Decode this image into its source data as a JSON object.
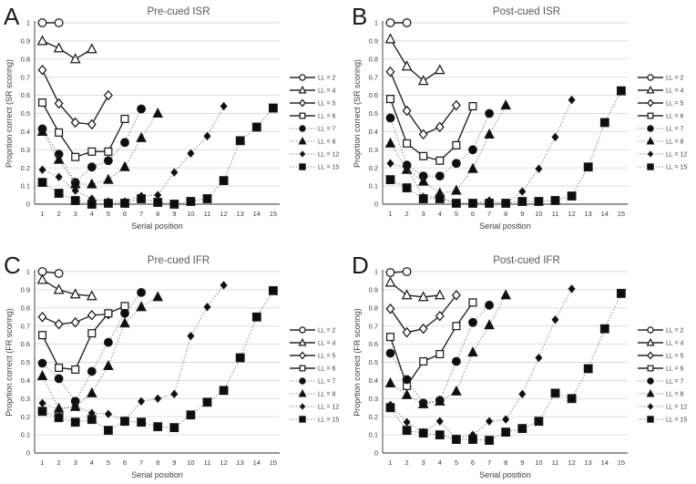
{
  "figure": {
    "description": "Four-panel serial position curves figure",
    "panel_letters": [
      "A",
      "B",
      "C",
      "D"
    ]
  },
  "style": {
    "background": "#ffffff",
    "grid_color": "#d9d9d9",
    "axis_line_color": "#595959",
    "tick_text_color": "#404040",
    "axis_title_color": "#404040",
    "title_color": "#595959",
    "panel_label_color": "#1a1a1a",
    "solid_line_color": "#262626",
    "dotted_line_color": "#7f7f7f",
    "marker_stroke": "#1a1a1a",
    "marker_fill": "#0d0d0d",
    "open_marker_fill": "#ffffff"
  },
  "axes": {
    "xlabel": "Serial position",
    "x_tick_labels": [
      "1",
      "2",
      "3",
      "4",
      "5",
      "6",
      "7",
      "8",
      "9",
      "10",
      "11",
      "12",
      "13",
      "14",
      "15"
    ],
    "y_tick_labels": [
      "0",
      "0.1",
      "0.2",
      "0.3",
      "0.4",
      "0.5",
      "0.6",
      "0.7",
      "0.8",
      "0.9",
      "1"
    ],
    "ylim": [
      0,
      1
    ],
    "xlim": [
      1,
      15
    ],
    "grid": "horizontal",
    "legend_position": "right"
  },
  "series_styles": [
    {
      "name": "LL = 2",
      "marker": "circle",
      "variant": "open",
      "line": "solid"
    },
    {
      "name": "LL = 4",
      "marker": "triangle",
      "variant": "open",
      "line": "solid"
    },
    {
      "name": "LL = 5",
      "marker": "diamond",
      "variant": "open",
      "line": "solid"
    },
    {
      "name": "LL = 6",
      "marker": "square",
      "variant": "open",
      "line": "solid"
    },
    {
      "name": "LL = 7",
      "marker": "circle",
      "variant": "filled",
      "line": "dotted"
    },
    {
      "name": "LL = 8",
      "marker": "triangle",
      "variant": "filled",
      "line": "dotted"
    },
    {
      "name": "LL = 12",
      "marker": "diamond",
      "variant": "filled",
      "line": "dotted"
    },
    {
      "name": "LL = 15",
      "marker": "square",
      "variant": "filled",
      "line": "dotted"
    }
  ],
  "chart_data": [
    {
      "type": "line",
      "panel_label": "A",
      "title": "Pre-cued ISR",
      "xlabel": "Serial position",
      "ylabel": "Proprtion correct (SR scoring)",
      "series": [
        {
          "name": "LL = 2",
          "y": [
            1,
            1
          ]
        },
        {
          "name": "LL = 4",
          "y": [
            0.9,
            0.86,
            0.8,
            0.855
          ]
        },
        {
          "name": "LL = 5",
          "y": [
            0.74,
            0.555,
            0.45,
            0.44,
            0.6
          ]
        },
        {
          "name": "LL = 6",
          "y": [
            0.56,
            0.395,
            0.26,
            0.29,
            0.29,
            0.47
          ]
        },
        {
          "name": "LL = 7",
          "y": [
            0.415,
            0.275,
            0.12,
            0.205,
            0.24,
            0.34,
            0.525
          ]
        },
        {
          "name": "LL = 8",
          "y": [
            0.4,
            0.245,
            0.11,
            0.11,
            0.135,
            0.205,
            0.365,
            0.5
          ]
        },
        {
          "name": "LL = 12",
          "y": [
            0.19,
            0.15,
            0.075,
            0.03,
            0.015,
            0.015,
            0.045,
            0.05,
            0.175,
            0.28,
            0.375,
            0.54
          ]
        },
        {
          "name": "LL = 15",
          "y": [
            0.12,
            0.06,
            0.02,
            0,
            0.005,
            0.005,
            0.03,
            0.01,
            0,
            0.015,
            0.03,
            0.13,
            0.35,
            0.425,
            0.53
          ]
        }
      ]
    },
    {
      "type": "line",
      "panel_label": "B",
      "title": "Post-cued ISR",
      "xlabel": "Serial position",
      "ylabel": "Proprtion correct (SR scoring)",
      "series": [
        {
          "name": "LL = 2",
          "y": [
            1,
            1
          ]
        },
        {
          "name": "LL = 4",
          "y": [
            0.91,
            0.76,
            0.68,
            0.74
          ]
        },
        {
          "name": "LL = 5",
          "y": [
            0.73,
            0.515,
            0.385,
            0.425,
            0.545
          ]
        },
        {
          "name": "LL = 6",
          "y": [
            0.58,
            0.335,
            0.265,
            0.24,
            0.325,
            0.54
          ]
        },
        {
          "name": "LL = 7",
          "y": [
            0.475,
            0.215,
            0.155,
            0.155,
            0.225,
            0.3,
            0.5
          ]
        },
        {
          "name": "LL = 8",
          "y": [
            0.335,
            0.19,
            0.125,
            0.06,
            0.075,
            0.195,
            0.385,
            0.545
          ]
        },
        {
          "name": "LL = 12",
          "y": [
            0.225,
            0.2,
            0.04,
            0.04,
            0.005,
            0.005,
            0.02,
            0.005,
            0.07,
            0.195,
            0.37,
            0.575
          ]
        },
        {
          "name": "LL = 15",
          "y": [
            0.135,
            0.09,
            0.03,
            0.03,
            0.005,
            0.005,
            0.005,
            0.005,
            0.015,
            0.015,
            0.02,
            0.045,
            0.205,
            0.45,
            0.625
          ]
        }
      ]
    },
    {
      "type": "line",
      "panel_label": "C",
      "title": "Pre-cued IFR",
      "xlabel": "Serial position",
      "ylabel": "Proprtion correct (FR scoring)",
      "series": [
        {
          "name": "LL = 2",
          "y": [
            1,
            0.99
          ]
        },
        {
          "name": "LL = 4",
          "y": [
            0.955,
            0.9,
            0.875,
            0.865
          ]
        },
        {
          "name": "LL = 5",
          "y": [
            0.75,
            0.71,
            0.72,
            0.76,
            0.765
          ]
        },
        {
          "name": "LL = 6",
          "y": [
            0.65,
            0.47,
            0.46,
            0.66,
            0.77,
            0.81
          ]
        },
        {
          "name": "LL = 7",
          "y": [
            0.495,
            0.41,
            0.285,
            0.45,
            0.61,
            0.77,
            0.885
          ]
        },
        {
          "name": "LL = 8",
          "y": [
            0.425,
            0.245,
            0.255,
            0.33,
            0.48,
            0.715,
            0.805,
            0.86
          ]
        },
        {
          "name": "LL = 12",
          "y": [
            0.275,
            0.24,
            0.26,
            0.22,
            0.215,
            0.18,
            0.285,
            0.3,
            0.325,
            0.645,
            0.805,
            0.925
          ]
        },
        {
          "name": "LL = 15",
          "y": [
            0.23,
            0.195,
            0.17,
            0.185,
            0.125,
            0.175,
            0.17,
            0.145,
            0.14,
            0.21,
            0.28,
            0.345,
            0.525,
            0.75,
            0.895
          ]
        }
      ]
    },
    {
      "type": "line",
      "panel_label": "D",
      "title": "Post-cued IFR",
      "xlabel": "Serial position",
      "ylabel": "Proprtion correct (FR scoring)",
      "series": [
        {
          "name": "LL = 2",
          "y": [
            0.995,
            1
          ]
        },
        {
          "name": "LL = 4",
          "y": [
            0.94,
            0.87,
            0.86,
            0.87
          ]
        },
        {
          "name": "LL = 5",
          "y": [
            0.795,
            0.665,
            0.685,
            0.755,
            0.87
          ]
        },
        {
          "name": "LL = 6",
          "y": [
            0.64,
            0.37,
            0.505,
            0.545,
            0.7,
            0.83
          ]
        },
        {
          "name": "LL = 7",
          "y": [
            0.55,
            0.405,
            0.275,
            0.29,
            0.505,
            0.72,
            0.815
          ]
        },
        {
          "name": "LL = 8",
          "y": [
            0.385,
            0.32,
            0.27,
            0.285,
            0.34,
            0.555,
            0.705,
            0.87
          ]
        },
        {
          "name": "LL = 12",
          "y": [
            0.265,
            0.17,
            0.115,
            0.175,
            0.08,
            0.1,
            0.175,
            0.185,
            0.325,
            0.525,
            0.735,
            0.905
          ]
        },
        {
          "name": "LL = 15",
          "y": [
            0.25,
            0.125,
            0.11,
            0.1,
            0.075,
            0.075,
            0.07,
            0.115,
            0.135,
            0.175,
            0.33,
            0.3,
            0.465,
            0.685,
            0.88
          ]
        }
      ]
    }
  ]
}
